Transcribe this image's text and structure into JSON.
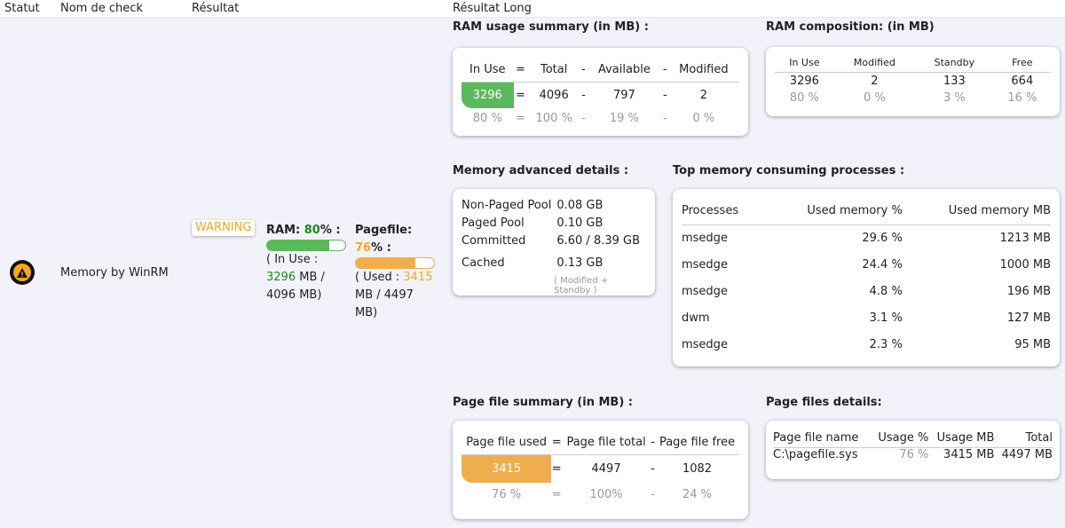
{
  "header": {
    "statut": "Statut",
    "nom": "Nom de check",
    "resultat": "Résultat",
    "long": "Résultat Long"
  },
  "row": {
    "check_name": "Memory by WinRM",
    "status_icon": "warning-triangle-icon",
    "badge": "WARNING",
    "ram": {
      "label": "RAM: ",
      "pct": "80",
      "pct_suffix": "% :",
      "percent": 80,
      "line1": "( In Use : ",
      "value": "3296",
      "line2": " MB / 4096 MB)",
      "color": "#5cb85c"
    },
    "pagefile": {
      "label": "Pagefile: ",
      "pct": "76",
      "pct_suffix": "% :",
      "percent": 76,
      "line1": "( Used : ",
      "value": "3415",
      "line2": " MB / 4497 MB)",
      "color": "#f0ad4e"
    }
  },
  "ram_summary": {
    "title": "RAM usage summary (in MB) :",
    "headers": [
      "In Use",
      "=",
      "Total",
      "-",
      "Available",
      "-",
      "Modified"
    ],
    "values": [
      "3296",
      "=",
      "4096",
      "-",
      "797",
      "-",
      "2"
    ],
    "percents": [
      "80 %",
      "=",
      "100 %",
      "-",
      "19 %",
      "-",
      "0 %"
    ]
  },
  "ram_composition": {
    "title": "RAM composition: (in MB)",
    "headers": [
      "In Use",
      "Modified",
      "Standby",
      "Free"
    ],
    "values": [
      "3296",
      "2",
      "133",
      "664"
    ],
    "percents": [
      "80 %",
      "0 %",
      "3 %",
      "16 %"
    ]
  },
  "advanced": {
    "title": "Memory advanced details :",
    "rows": [
      [
        "Non-Paged Pool",
        "0.08 GB"
      ],
      [
        "Paged Pool",
        "0.10 GB"
      ],
      [
        "Committed",
        "6.60 / 8.39 GB"
      ],
      [
        "Cached",
        "0.13 GB"
      ]
    ],
    "note": "( Modified + Standby )"
  },
  "processes": {
    "title": "Top memory consuming processes :",
    "headers": [
      "Processes",
      "Used memory %",
      "Used memory MB"
    ],
    "rows": [
      [
        "msedge",
        "29.6 %",
        "1213 MB"
      ],
      [
        "msedge",
        "24.4 %",
        "1000 MB"
      ],
      [
        "msedge",
        "4.8 %",
        "196 MB"
      ],
      [
        "dwm",
        "3.1 %",
        "127 MB"
      ],
      [
        "msedge",
        "2.3 %",
        "95 MB"
      ]
    ]
  },
  "pf_summary": {
    "title": "Page file summary (in MB) :",
    "headers": [
      "Page file used",
      "=",
      "Page file total",
      "-",
      "Page file free"
    ],
    "values": [
      "3415",
      "=",
      "4497",
      "-",
      "1082"
    ],
    "percents": [
      "76 %",
      "=",
      "100%",
      "-",
      "24 %"
    ]
  },
  "pf_details": {
    "title": "Page files details:",
    "headers": [
      "Page file name",
      "Usage %",
      "Usage MB",
      "Total"
    ],
    "row": [
      "C:\\pagefile.sys",
      "76 %",
      "3415 MB",
      "4497 MB"
    ]
  }
}
